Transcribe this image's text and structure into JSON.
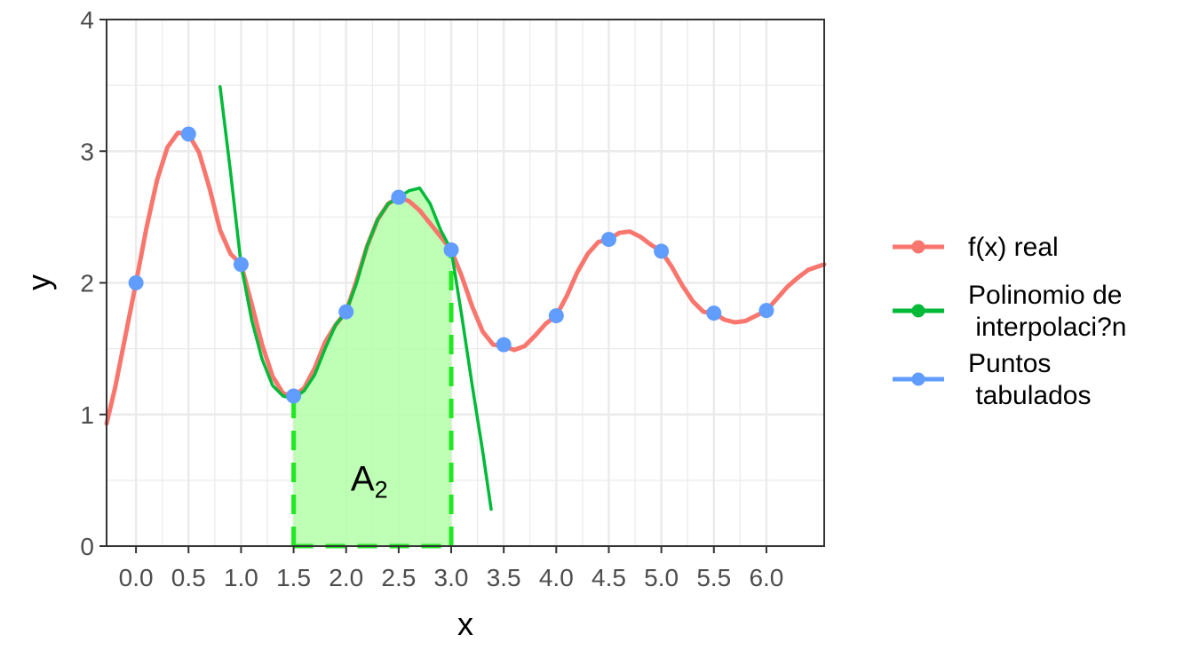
{
  "chart_data": {
    "type": "line",
    "title": "",
    "xlabel": "x",
    "ylabel": "y",
    "xlim": [
      -0.28,
      6.55
    ],
    "ylim": [
      0,
      4
    ],
    "grid": true,
    "x_ticks": [
      "0.0",
      "0.5",
      "1.0",
      "1.5",
      "2.0",
      "2.5",
      "3.0",
      "3.5",
      "4.0",
      "4.5",
      "5.0",
      "5.5",
      "6.0"
    ],
    "y_ticks": [
      "0",
      "1",
      "2",
      "3",
      "4"
    ],
    "legend_position": "right",
    "series": [
      {
        "name": "f(x) real",
        "color": "#F8766D",
        "style": "line",
        "x": [
          -0.28,
          -0.2,
          -0.1,
          0.0,
          0.1,
          0.2,
          0.3,
          0.4,
          0.5,
          0.6,
          0.7,
          0.8,
          0.9,
          1.0,
          1.1,
          1.2,
          1.3,
          1.4,
          1.5,
          1.6,
          1.7,
          1.8,
          1.9,
          2.0,
          2.1,
          2.2,
          2.3,
          2.4,
          2.5,
          2.6,
          2.7,
          2.8,
          2.9,
          3.0,
          3.1,
          3.2,
          3.3,
          3.4,
          3.5,
          3.6,
          3.7,
          3.8,
          3.9,
          4.0,
          4.1,
          4.2,
          4.3,
          4.4,
          4.5,
          4.6,
          4.7,
          4.8,
          4.9,
          5.0,
          5.1,
          5.2,
          5.3,
          5.4,
          5.5,
          5.6,
          5.7,
          5.8,
          5.9,
          6.0,
          6.1,
          6.2,
          6.3,
          6.4,
          6.55
        ],
        "y": [
          0.93,
          1.2,
          1.6,
          2.0,
          2.42,
          2.78,
          3.03,
          3.14,
          3.13,
          2.99,
          2.72,
          2.4,
          2.22,
          2.14,
          1.84,
          1.53,
          1.29,
          1.16,
          1.14,
          1.2,
          1.35,
          1.55,
          1.68,
          1.78,
          2.02,
          2.28,
          2.48,
          2.6,
          2.65,
          2.62,
          2.55,
          2.45,
          2.35,
          2.25,
          2.05,
          1.82,
          1.63,
          1.53,
          1.52,
          1.49,
          1.52,
          1.6,
          1.69,
          1.75,
          1.9,
          2.08,
          2.22,
          2.31,
          2.33,
          2.38,
          2.39,
          2.35,
          2.29,
          2.24,
          2.12,
          1.98,
          1.86,
          1.78,
          1.77,
          1.72,
          1.7,
          1.71,
          1.75,
          1.79,
          1.88,
          1.97,
          2.04,
          2.1,
          2.14
        ]
      },
      {
        "name": "Polinomio de\n interpolaci?n",
        "color": "#00BA38",
        "style": "line",
        "x": [
          0.8,
          0.9,
          1.0,
          1.1,
          1.2,
          1.3,
          1.4,
          1.5,
          1.6,
          1.7,
          1.8,
          1.9,
          2.0,
          2.1,
          2.2,
          2.3,
          2.4,
          2.5,
          2.6,
          2.7,
          2.8,
          2.9,
          3.0,
          3.1,
          3.2,
          3.3,
          3.38
        ],
        "y": [
          3.49,
          2.84,
          2.14,
          1.72,
          1.42,
          1.22,
          1.14,
          1.12,
          1.18,
          1.3,
          1.5,
          1.68,
          1.78,
          2.0,
          2.28,
          2.48,
          2.6,
          2.65,
          2.7,
          2.72,
          2.6,
          2.4,
          2.25,
          1.75,
          1.22,
          0.72,
          0.28
        ]
      },
      {
        "name": "Puntos\n tabulados",
        "color": "#619CFF",
        "style": "points",
        "x": [
          0.0,
          0.5,
          1.0,
          1.5,
          2.0,
          2.5,
          3.0,
          3.5,
          4.0,
          4.5,
          5.0,
          5.5,
          6.0
        ],
        "y": [
          2.0,
          3.13,
          2.14,
          1.14,
          1.78,
          2.65,
          2.25,
          1.53,
          1.75,
          2.33,
          2.24,
          1.77,
          1.79
        ]
      }
    ],
    "shaded_area": {
      "label": "A",
      "subscript": "2",
      "x_from": 1.5,
      "x_to": 3.0,
      "fill": "#B3FFA8",
      "edge_color": "#22E822"
    },
    "legend": [
      {
        "label_lines": [
          "f(x) real"
        ],
        "color": "#F8766D"
      },
      {
        "label_lines": [
          "Polinomio de",
          " interpolaci?n"
        ],
        "color": "#00BA38"
      },
      {
        "label_lines": [
          "Puntos",
          " tabulados"
        ],
        "color": "#619CFF"
      }
    ]
  }
}
